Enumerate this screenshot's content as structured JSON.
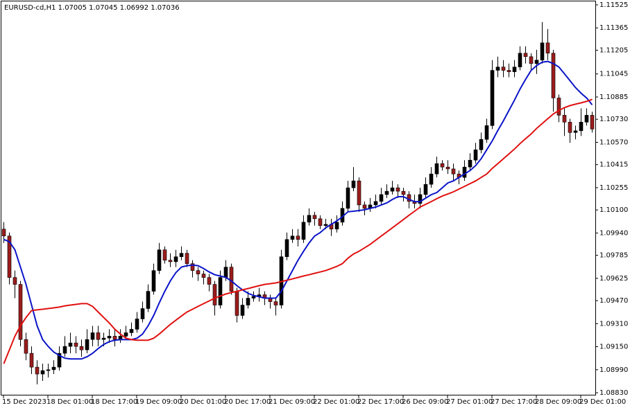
{
  "chart_data": {
    "type": "candlestick",
    "title": "EURUSD-cd,H1  1.07005 1.07045 1.06992 1.07036",
    "up_color": "#000000",
    "down_color": "#9a1c1c",
    "wick_color": "#000000",
    "ylim": [
      1.08816,
      1.11549
    ],
    "yticks": [
      1.11525,
      1.11365,
      {
        "value": 1.1121,
        "label": "1.11205"
      },
      1.11045,
      1.10885,
      {
        "value": 1.1073,
        "label": "1.10730"
      },
      {
        "value": 1.1057,
        "label": "1.10570"
      },
      1.10415,
      1.10255,
      {
        "value": 1.101,
        "label": "1.10100"
      },
      {
        "value": 1.0994,
        "label": "1.09940"
      },
      1.09785,
      1.09625,
      {
        "value": 1.0947,
        "label": "1.09470"
      },
      {
        "value": 1.0931,
        "label": "1.09310"
      },
      {
        "value": 1.0915,
        "label": "1.09150"
      },
      {
        "value": 1.0899,
        "label": "1.08990"
      },
      {
        "value": 1.0883,
        "label": "1.08830"
      }
    ],
    "categories": [
      "15 Dec 2023",
      null,
      null,
      null,
      null,
      null,
      null,
      null,
      "18 Dec 01:00",
      null,
      null,
      null,
      null,
      null,
      null,
      null,
      "18 Dec 17:00",
      null,
      null,
      null,
      null,
      null,
      null,
      null,
      "19 Dec 09:00",
      null,
      null,
      null,
      null,
      null,
      null,
      null,
      "20 Dec 01:00",
      null,
      null,
      null,
      null,
      null,
      null,
      null,
      "20 Dec 17:00",
      null,
      null,
      null,
      null,
      null,
      null,
      null,
      "21 Dec 09:00",
      null,
      null,
      null,
      null,
      null,
      null,
      null,
      "22 Dec 01:00",
      null,
      null,
      null,
      null,
      null,
      null,
      null,
      "22 Dec 17:00",
      null,
      null,
      null,
      null,
      null,
      null,
      null,
      "26 Dec 09:00",
      null,
      null,
      null,
      null,
      null,
      null,
      null,
      "27 Dec 01:00",
      null,
      null,
      null,
      null,
      null,
      null,
      null,
      "27 Dec 17:00",
      null,
      null,
      null,
      null,
      null,
      null,
      null,
      "28 Dec 09:00",
      null,
      null,
      null,
      null,
      null,
      null,
      null,
      "29 Dec 01:00",
      null,
      null
    ],
    "ohlc": [
      [
        1.09967,
        1.10015,
        1.09871,
        1.09919
      ],
      [
        1.09919,
        1.09943,
        1.09583,
        1.09631
      ],
      [
        1.09631,
        1.09679,
        1.09487,
        1.09583
      ],
      [
        1.09583,
        1.09607,
        1.09152,
        1.092
      ],
      [
        1.092,
        1.09247,
        1.09056,
        1.09104
      ],
      [
        1.09104,
        1.09152,
        1.0896,
        1.09008
      ],
      [
        1.09008,
        1.09056,
        1.08888,
        1.0896
      ],
      [
        1.0896,
        1.09032,
        1.08912,
        1.08984
      ],
      [
        1.08984,
        1.09032,
        1.08936,
        1.0899
      ],
      [
        1.0899,
        1.09056,
        1.0896,
        1.09008
      ],
      [
        1.09008,
        1.09152,
        1.08984,
        1.09104
      ],
      [
        1.09104,
        1.09223,
        1.0908,
        1.09152
      ],
      [
        1.09152,
        1.09247,
        1.09104,
        1.09176
      ],
      [
        1.09176,
        1.09223,
        1.09104,
        1.09152
      ],
      [
        1.09152,
        1.092,
        1.0908,
        1.09128
      ],
      [
        1.09128,
        1.09271,
        1.09104,
        1.092
      ],
      [
        1.092,
        1.09295,
        1.09152,
        1.09247
      ],
      [
        1.09247,
        1.09295,
        1.09152,
        1.092
      ],
      [
        1.092,
        1.09247,
        1.09152,
        1.0921
      ],
      [
        1.0921,
        1.09271,
        1.09176,
        1.09223
      ],
      [
        1.09223,
        1.09271,
        1.09152,
        1.092
      ],
      [
        1.092,
        1.09271,
        1.09176,
        1.09223
      ],
      [
        1.09223,
        1.09295,
        1.092,
        1.09247
      ],
      [
        1.09247,
        1.09319,
        1.09223,
        1.09271
      ],
      [
        1.09271,
        1.09391,
        1.09247,
        1.09343
      ],
      [
        1.09343,
        1.09463,
        1.09319,
        1.09415
      ],
      [
        1.09415,
        1.09583,
        1.09391,
        1.09535
      ],
      [
        1.09535,
        1.09727,
        1.09511,
        1.09679
      ],
      [
        1.09679,
        1.09871,
        1.09655,
        1.09823
      ],
      [
        1.09823,
        1.09847,
        1.09727,
        1.09751
      ],
      [
        1.09751,
        1.09799,
        1.09703,
        1.0974
      ],
      [
        1.0974,
        1.09823,
        1.09703,
        1.09775
      ],
      [
        1.09775,
        1.09847,
        1.09751,
        1.09799
      ],
      [
        1.09799,
        1.09823,
        1.09703,
        1.09727
      ],
      [
        1.09727,
        1.09751,
        1.09631,
        1.09679
      ],
      [
        1.09679,
        1.09703,
        1.09607,
        1.09655
      ],
      [
        1.09655,
        1.09679,
        1.09583,
        1.09631
      ],
      [
        1.09631,
        1.09655,
        1.09535,
        1.09583
      ],
      [
        1.09583,
        1.09607,
        1.09367,
        1.09439
      ],
      [
        1.09439,
        1.09679,
        1.09415,
        1.09631
      ],
      [
        1.09631,
        1.09751,
        1.09607,
        1.09703
      ],
      [
        1.09703,
        1.09727,
        1.09511,
        1.09535
      ],
      [
        1.09535,
        1.09559,
        1.09319,
        1.09367
      ],
      [
        1.09367,
        1.09487,
        1.09343,
        1.09439
      ],
      [
        1.09439,
        1.09535,
        1.09415,
        1.09487
      ],
      [
        1.09487,
        1.09535,
        1.09463,
        1.095
      ],
      [
        1.095,
        1.09559,
        1.09463,
        1.09511
      ],
      [
        1.09511,
        1.09535,
        1.09439,
        1.09487
      ],
      [
        1.09487,
        1.09511,
        1.09415,
        1.09463
      ],
      [
        1.09463,
        1.09487,
        1.09367,
        1.09439
      ],
      [
        1.09439,
        1.09823,
        1.09415,
        1.09775
      ],
      [
        1.09775,
        1.09943,
        1.09751,
        1.09895
      ],
      [
        1.09895,
        1.09967,
        1.09871,
        1.09919
      ],
      [
        1.09919,
        1.09967,
        1.09847,
        1.09895
      ],
      [
        1.09895,
        1.10063,
        1.09871,
        1.10015
      ],
      [
        1.10015,
        1.10111,
        1.09991,
        1.10063
      ],
      [
        1.10063,
        1.10087,
        1.09991,
        1.10039
      ],
      [
        1.10039,
        1.10063,
        1.09967,
        1.09991
      ],
      [
        1.09991,
        1.10039,
        1.09967,
        1.1
      ],
      [
        1.1,
        1.10039,
        1.09919,
        1.09967
      ],
      [
        1.09967,
        1.10063,
        1.09943,
        1.10015
      ],
      [
        1.10015,
        1.10159,
        1.09991,
        1.10111
      ],
      [
        1.10111,
        1.10302,
        1.10087,
        1.10254
      ],
      [
        1.10254,
        1.10398,
        1.1023,
        1.10302
      ],
      [
        1.10302,
        1.10326,
        1.10087,
        1.10135
      ],
      [
        1.10135,
        1.10159,
        1.10063,
        1.10111
      ],
      [
        1.10111,
        1.10183,
        1.10087,
        1.10135
      ],
      [
        1.10135,
        1.10207,
        1.10111,
        1.10159
      ],
      [
        1.10159,
        1.10254,
        1.10135,
        1.10207
      ],
      [
        1.10207,
        1.10278,
        1.10183,
        1.1023
      ],
      [
        1.1023,
        1.10302,
        1.10207,
        1.10254
      ],
      [
        1.10254,
        1.10278,
        1.10183,
        1.1023
      ],
      [
        1.1023,
        1.10254,
        1.10159,
        1.10207
      ],
      [
        1.10207,
        1.1023,
        1.10111,
        1.10159
      ],
      [
        1.10159,
        1.10207,
        1.10111,
        1.10145
      ],
      [
        1.10145,
        1.10254,
        1.10111,
        1.10207
      ],
      [
        1.10207,
        1.10326,
        1.10183,
        1.10278
      ],
      [
        1.10278,
        1.10398,
        1.10254,
        1.1035
      ],
      [
        1.1035,
        1.1047,
        1.10326,
        1.10422
      ],
      [
        1.10422,
        1.10446,
        1.10374,
        1.10398
      ],
      [
        1.10398,
        1.10446,
        1.1035,
        1.10385
      ],
      [
        1.10385,
        1.10422,
        1.10302,
        1.1035
      ],
      [
        1.1035,
        1.10374,
        1.10278,
        1.10326
      ],
      [
        1.10326,
        1.10446,
        1.10302,
        1.10398
      ],
      [
        1.10398,
        1.10494,
        1.10374,
        1.10446
      ],
      [
        1.10446,
        1.10566,
        1.10422,
        1.10518
      ],
      [
        1.10518,
        1.10638,
        1.10494,
        1.1059
      ],
      [
        1.1059,
        1.10734,
        1.10566,
        1.10686
      ],
      [
        1.10686,
        1.11141,
        1.10662,
        1.1107
      ],
      [
        1.1107,
        1.11165,
        1.11022,
        1.11093
      ],
      [
        1.11093,
        1.11141,
        1.11022,
        1.1107
      ],
      [
        1.1107,
        1.11117,
        1.11022,
        1.1106
      ],
      [
        1.1106,
        1.11141,
        1.11022,
        1.11093
      ],
      [
        1.11093,
        1.11237,
        1.1107,
        1.11189
      ],
      [
        1.11189,
        1.11237,
        1.11117,
        1.11165
      ],
      [
        1.11165,
        1.11189,
        1.1107,
        1.11117
      ],
      [
        1.11117,
        1.11213,
        1.11045,
        1.11141
      ],
      [
        1.11141,
        1.11405,
        1.11117,
        1.11261
      ],
      [
        1.11261,
        1.11357,
        1.11141,
        1.11189
      ],
      [
        1.11189,
        1.11213,
        1.10782,
        1.10878
      ],
      [
        1.10878,
        1.10902,
        1.1071,
        1.10758
      ],
      [
        1.10758,
        1.10806,
        1.10614,
        1.1071
      ],
      [
        1.1071,
        1.10734,
        1.10566,
        1.10638
      ],
      [
        1.10638,
        1.10686,
        1.1059,
        1.1065
      ],
      [
        1.1065,
        1.10806,
        1.10614,
        1.1071
      ],
      [
        1.1071,
        1.10806,
        1.10686,
        1.10758
      ],
      [
        1.10758,
        1.10782,
        1.10638,
        1.10662
      ]
    ],
    "series": [
      {
        "color": "#0a14c8",
        "values": [
          1.09895,
          1.0988,
          1.09823,
          1.09703,
          1.09583,
          1.09439,
          1.09295,
          1.09199,
          1.09152,
          1.09113,
          1.09089,
          1.0907,
          1.09065,
          1.09065,
          1.09065,
          1.0908,
          1.09104,
          1.09137,
          1.09166,
          1.09185,
          1.09195,
          1.09199,
          1.09199,
          1.09199,
          1.09209,
          1.09238,
          1.09295,
          1.09367,
          1.09454,
          1.09535,
          1.09607,
          1.09665,
          1.09703,
          1.09713,
          1.09717,
          1.09713,
          1.09693,
          1.09669,
          1.0965,
          1.09641,
          1.09631,
          1.09607,
          1.09574,
          1.09545,
          1.09521,
          1.09506,
          1.09497,
          1.09487,
          1.09487,
          1.09487,
          1.09535,
          1.09607,
          1.09679,
          1.09751,
          1.09813,
          1.09871,
          1.09919,
          1.09943,
          1.09976,
          1.1,
          1.10024,
          1.10053,
          1.10087,
          1.10091,
          1.10096,
          1.10101,
          1.10111,
          1.1012,
          1.10135,
          1.10149,
          1.10173,
          1.10192,
          1.10192,
          1.10173,
          1.10158,
          1.10158,
          1.10182,
          1.10206,
          1.10221,
          1.10254,
          1.10288,
          1.10302,
          1.10326,
          1.1035,
          1.10374,
          1.10408,
          1.10456,
          1.10518,
          1.1058,
          1.10652,
          1.10719,
          1.10791,
          1.10863,
          1.1094,
          1.11007,
          1.1107,
          1.11103,
          1.11127,
          1.11132,
          1.11117,
          1.11093,
          1.11046,
          1.10998,
          1.1095,
          1.10911,
          1.10878,
          1.1083
        ]
      },
      {
        "color": "#e01010",
        "values": [
          1.09032,
          1.09128,
          1.09223,
          1.09295,
          1.09353,
          1.09401,
          1.09406,
          1.0941,
          1.09415,
          1.0942,
          1.09425,
          1.09434,
          1.09439,
          1.09444,
          1.09449,
          1.09449,
          1.0943,
          1.09391,
          1.09353,
          1.09315,
          1.09271,
          1.09238,
          1.09209,
          1.09199,
          1.09195,
          1.09195,
          1.09195,
          1.09209,
          1.09238,
          1.09271,
          1.09305,
          1.09334,
          1.09363,
          1.09391,
          1.0941,
          1.0943,
          1.09449,
          1.09468,
          1.09487,
          1.09502,
          1.09516,
          1.09526,
          1.09535,
          1.09545,
          1.09554,
          1.09564,
          1.09574,
          1.09583,
          1.09588,
          1.09593,
          1.09602,
          1.09612,
          1.09621,
          1.09631,
          1.09641,
          1.0965,
          1.0966,
          1.09669,
          1.09679,
          1.09693,
          1.09708,
          1.09727,
          1.09765,
          1.09794,
          1.09813,
          1.09837,
          1.09861,
          1.0989,
          1.09919,
          1.09947,
          1.09976,
          1.10005,
          1.10034,
          1.10063,
          1.10091,
          1.1012,
          1.10139,
          1.10158,
          1.10178,
          1.10197,
          1.10211,
          1.10226,
          1.10245,
          1.10264,
          1.10283,
          1.10302,
          1.10326,
          1.1035,
          1.10389,
          1.10422,
          1.10456,
          1.10489,
          1.10523,
          1.10561,
          1.10595,
          1.10628,
          1.10667,
          1.107,
          1.10734,
          1.10767,
          1.10791,
          1.10811,
          1.10825,
          1.10835,
          1.10844,
          1.10854,
          1.10868
        ]
      }
    ]
  }
}
